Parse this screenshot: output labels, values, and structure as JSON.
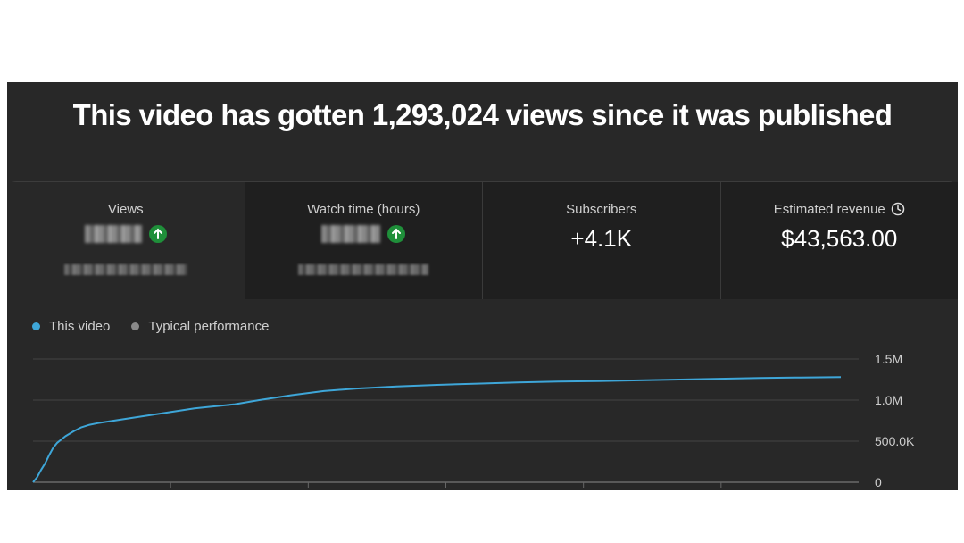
{
  "headline": "This video has gotten 1,293,024 views since it was published",
  "stats": [
    {
      "label": "Views",
      "value": "",
      "redacted": true,
      "trend_icon": "arrow-up-circle-icon"
    },
    {
      "label": "Watch time (hours)",
      "value": "",
      "redacted": true,
      "trend_icon": "arrow-up-circle-icon"
    },
    {
      "label": "Subscribers",
      "value": "+4.1K"
    },
    {
      "label": "Estimated revenue",
      "value": "$43,563.00",
      "info_icon": "clock-icon"
    }
  ],
  "legend": [
    {
      "label": "This video",
      "color": "#3ea6d8"
    },
    {
      "label": "Typical performance",
      "color": "#8a8a8a"
    }
  ],
  "chart_data": {
    "type": "line",
    "y_tick_labels": [
      "1.5M",
      "1.0M",
      "500.0K",
      "0"
    ],
    "y_ticks": [
      1500000,
      1000000,
      500000,
      0
    ],
    "ylim": [
      0,
      1500000
    ],
    "grid": true,
    "legend_position": "top-left",
    "series": [
      {
        "name": "This video",
        "color": "#3ea6d8",
        "x": [
          0,
          0.5,
          1,
          1.5,
          2,
          2.5,
          3,
          4,
          5,
          6,
          7,
          8,
          10,
          12,
          14,
          16,
          18,
          20,
          22,
          25,
          28,
          32,
          36,
          40,
          45,
          50,
          55,
          60,
          65,
          70,
          75,
          80,
          85,
          90,
          95,
          100
        ],
        "y": [
          0,
          60000,
          150000,
          230000,
          330000,
          420000,
          480000,
          560000,
          620000,
          670000,
          700000,
          720000,
          750000,
          780000,
          810000,
          840000,
          870000,
          900000,
          920000,
          950000,
          1000000,
          1060000,
          1110000,
          1140000,
          1165000,
          1185000,
          1200000,
          1215000,
          1225000,
          1232000,
          1240000,
          1250000,
          1260000,
          1268000,
          1275000,
          1280000
        ]
      }
    ]
  }
}
